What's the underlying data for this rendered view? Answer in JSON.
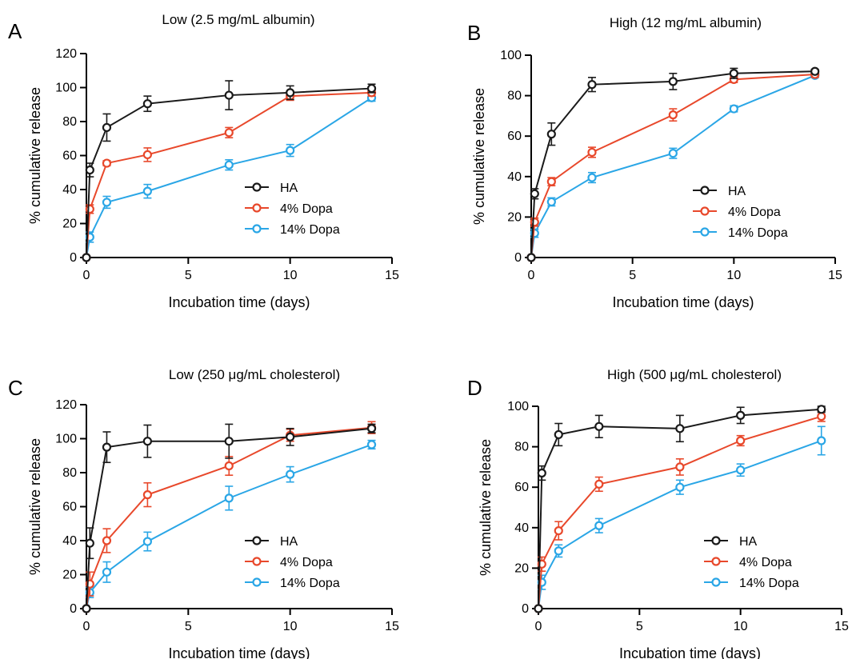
{
  "series_colors": {
    "HA": "#1a1a1a",
    "4% Dopa": "#e8482b",
    "14% Dopa": "#2aa6e6"
  },
  "chart_data": [
    {
      "letter": "A",
      "type": "line",
      "title": "Low (2.5 mg/mL albumin)",
      "xlabel": "Incubation time (days)",
      "ylabel": "% cumulative release",
      "xlim": [
        0,
        15
      ],
      "ylim": [
        0,
        120
      ],
      "xticks": [
        0,
        5,
        10,
        15
      ],
      "yticks": [
        0,
        20,
        40,
        60,
        80,
        100,
        120
      ],
      "x": [
        0,
        0.17,
        1,
        3,
        7,
        10,
        14
      ],
      "legend_position": "center-right",
      "series": [
        {
          "name": "HA",
          "values": [
            0,
            51.5,
            76.5,
            90.5,
            95.5,
            97,
            99.5
          ],
          "errors": [
            0,
            4,
            8,
            4.5,
            8.5,
            4,
            2.5
          ]
        },
        {
          "name": "4% Dopa",
          "values": [
            0,
            28.5,
            55.5,
            60.5,
            73.5,
            95,
            97
          ],
          "errors": [
            0,
            2.5,
            1.5,
            4,
            3,
            2.5,
            2
          ]
        },
        {
          "name": "14% Dopa",
          "values": [
            0,
            12,
            32.5,
            39,
            54.5,
            63,
            94
          ],
          "errors": [
            0,
            3,
            3.5,
            4,
            3,
            3.5,
            2
          ]
        }
      ]
    },
    {
      "letter": "B",
      "type": "line",
      "title": "High (12 mg/mL albumin)",
      "xlabel": "Incubation time (days)",
      "ylabel": "% cumulative release",
      "xlim": [
        0,
        15
      ],
      "ylim": [
        0,
        100
      ],
      "xticks": [
        0,
        5,
        10,
        15
      ],
      "yticks": [
        0,
        20,
        40,
        60,
        80,
        100
      ],
      "x": [
        0,
        0.17,
        1,
        3,
        7,
        10,
        14
      ],
      "legend_position": "center-right",
      "series": [
        {
          "name": "HA",
          "values": [
            0,
            31.5,
            61,
            85.5,
            87,
            91,
            92
          ],
          "errors": [
            0,
            2.5,
            5.5,
            3.5,
            4,
            2.5,
            1
          ]
        },
        {
          "name": "4% Dopa",
          "values": [
            0,
            17.5,
            37.5,
            52,
            70.5,
            88,
            90.5
          ],
          "errors": [
            0,
            2,
            2,
            2.5,
            3,
            1.5,
            1.5
          ]
        },
        {
          "name": "14% Dopa",
          "values": [
            0,
            12,
            27.5,
            39.5,
            51.5,
            73.5,
            90
          ],
          "errors": [
            0,
            2,
            2,
            2.5,
            2.5,
            1.5,
            1
          ]
        }
      ]
    },
    {
      "letter": "C",
      "type": "line",
      "title": "Low (250 μg/mL cholesterol)",
      "xlabel": "Incubation time (days)",
      "ylabel": "% cumulative release",
      "xlim": [
        0,
        15
      ],
      "ylim": [
        0,
        120
      ],
      "xticks": [
        0,
        5,
        10,
        15
      ],
      "yticks": [
        0,
        20,
        40,
        60,
        80,
        100,
        120
      ],
      "x": [
        0,
        0.17,
        1,
        3,
        7,
        10,
        14
      ],
      "legend_position": "center-right",
      "series": [
        {
          "name": "HA",
          "values": [
            0,
            38.5,
            95,
            98.5,
            98.5,
            101,
            106
          ],
          "errors": [
            0,
            9,
            9,
            9.5,
            10,
            5,
            2.5
          ]
        },
        {
          "name": "4% Dopa",
          "values": [
            0,
            14.5,
            40,
            67,
            84,
            102,
            106.5
          ],
          "errors": [
            0,
            7,
            7,
            7,
            5.5,
            3.5,
            3.5
          ]
        },
        {
          "name": "14% Dopa",
          "values": [
            0,
            9.5,
            21.5,
            39.5,
            65,
            79,
            96.5
          ],
          "errors": [
            0,
            3,
            6,
            5.5,
            7,
            4.5,
            2.5
          ]
        }
      ]
    },
    {
      "letter": "D",
      "type": "line",
      "title": "High  (500 μg/mL cholesterol)",
      "xlabel": "Incubation time (days)",
      "ylabel": "% cumulative release",
      "xlim": [
        0,
        15
      ],
      "ylim": [
        0,
        100
      ],
      "xticks": [
        0,
        5,
        10,
        15
      ],
      "yticks": [
        0,
        20,
        40,
        60,
        80,
        100
      ],
      "x": [
        0,
        0.17,
        1,
        3,
        7,
        10,
        14
      ],
      "legend_position": "center-right",
      "series": [
        {
          "name": "HA",
          "values": [
            0,
            67,
            86,
            90,
            89,
            95.5,
            98.5
          ],
          "errors": [
            0,
            3.5,
            5.5,
            5.5,
            6.5,
            4,
            1.5
          ]
        },
        {
          "name": "4% Dopa",
          "values": [
            0,
            22,
            38.5,
            61.5,
            70,
            83,
            95
          ],
          "errors": [
            0,
            3.5,
            4.5,
            3.5,
            4,
            2.5,
            2.5
          ]
        },
        {
          "name": "14% Dopa",
          "values": [
            0,
            13,
            28.5,
            41,
            60,
            68.5,
            83
          ],
          "errors": [
            0,
            3.5,
            3,
            3.5,
            3.5,
            3,
            7
          ]
        }
      ]
    }
  ]
}
